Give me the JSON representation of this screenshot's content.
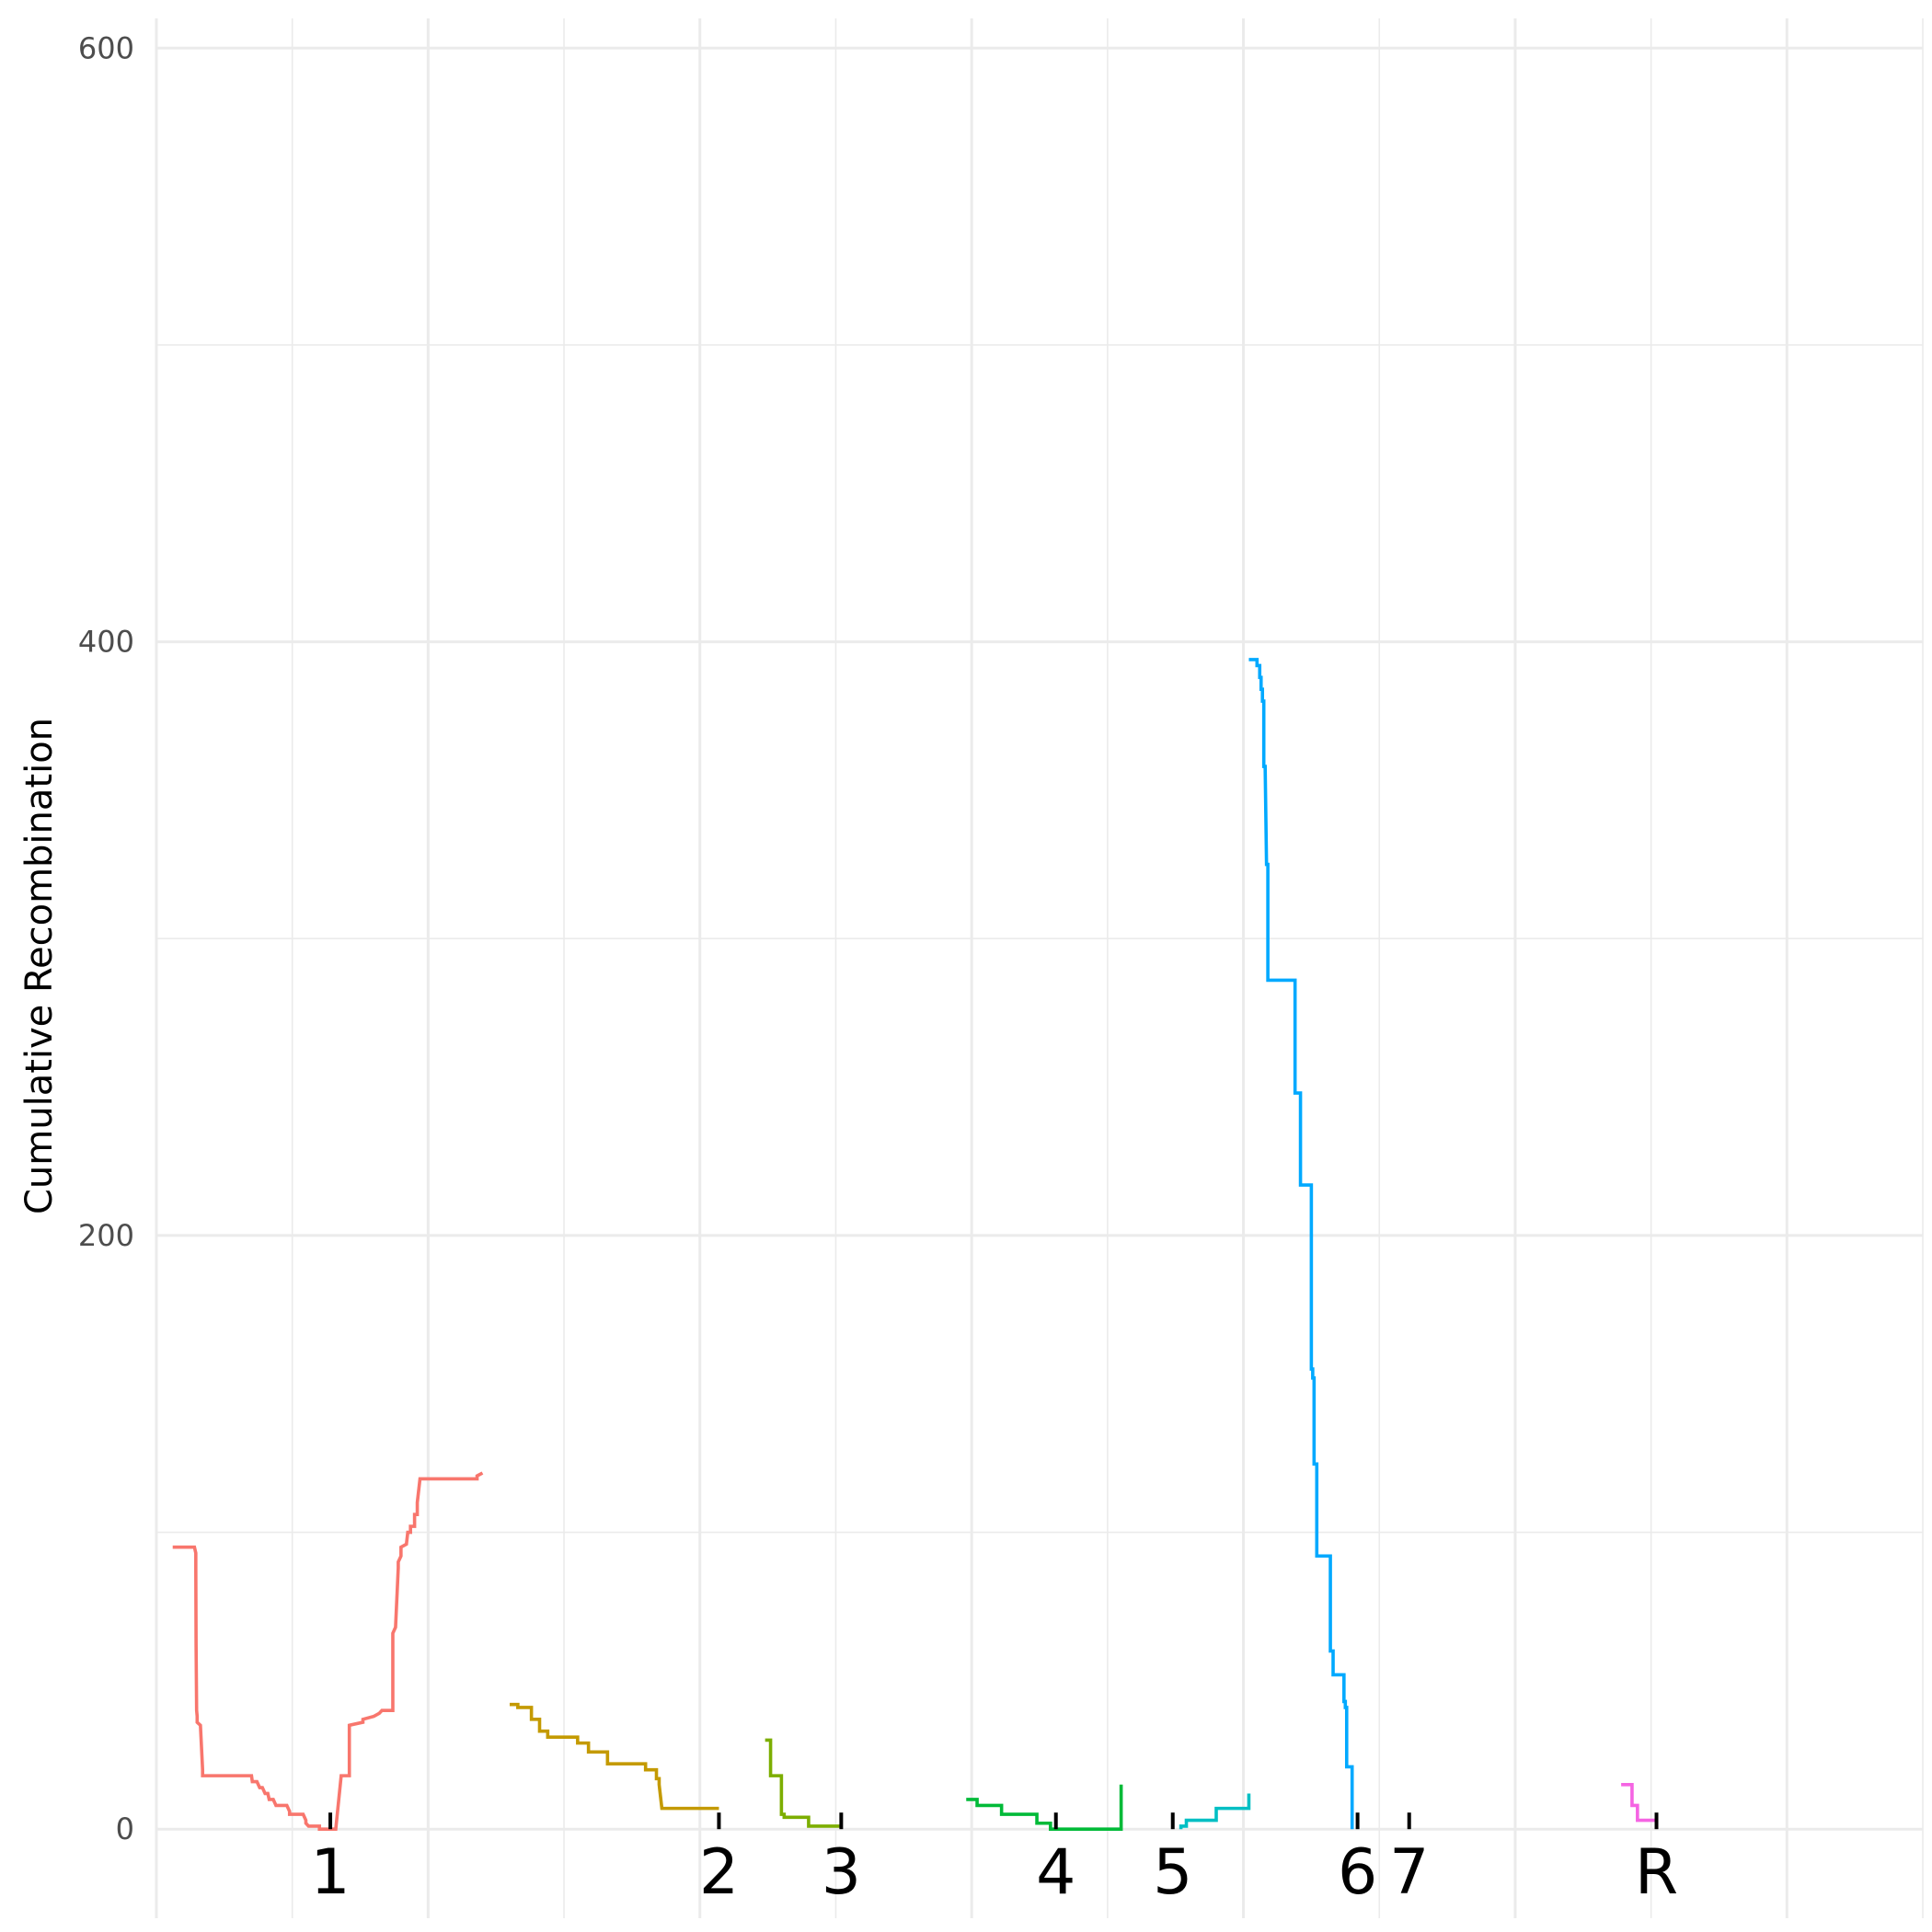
{
  "chart_data": {
    "type": "line",
    "title": "",
    "xlabel": "",
    "ylabel": "Cumulative Recombination",
    "xlim": [
      0,
      6.5
    ],
    "ylim": [
      -30,
      610
    ],
    "grid": true,
    "legend": "none",
    "y_ticks": [
      {
        "value": 0,
        "label": "0"
      },
      {
        "value": 200,
        "label": "200"
      },
      {
        "value": 400,
        "label": "400"
      },
      {
        "value": 600,
        "label": "600"
      }
    ],
    "x_ticks": [
      {
        "value": 0.64,
        "label": "1"
      },
      {
        "value": 2.07,
        "label": "2"
      },
      {
        "value": 2.52,
        "label": "3"
      },
      {
        "value": 3.31,
        "label": "4"
      },
      {
        "value": 3.74,
        "label": "5"
      },
      {
        "value": 4.42,
        "label": "6"
      },
      {
        "value": 4.61,
        "label": "7"
      },
      {
        "value": 5.52,
        "label": "R"
      }
    ],
    "series": [
      {
        "color": "#F8766D",
        "x": [
          0.06,
          0.14,
          0.145,
          0.145,
          0.146,
          0.148,
          0.15,
          0.15,
          0.162,
          0.17,
          0.17,
          0.174,
          0.17,
          0.35,
          0.353,
          0.37,
          0.38,
          0.39,
          0.4,
          0.41,
          0.415,
          0.43,
          0.44,
          0.48,
          0.49,
          0.49,
          0.5,
          0.54,
          0.55,
          0.55,
          0.56,
          0.6,
          0.6,
          0.66,
          0.66,
          0.68,
          0.71,
          0.71,
          0.76,
          0.76,
          0.8,
          0.82,
          0.83,
          0.86,
          0.87,
          0.87,
          0.88,
          0.89,
          0.89,
          0.9,
          0.9,
          0.92,
          0.925,
          0.935,
          0.935,
          0.95,
          0.95,
          0.96,
          0.96,
          0.97,
          1.18,
          1.18,
          1.2
        ],
        "y": [
          95,
          95,
          93,
          88,
          62,
          40,
          38,
          36,
          35,
          20,
          18,
          18,
          18,
          18,
          16,
          16,
          14,
          14,
          12,
          12,
          10,
          10,
          8,
          8,
          6,
          5,
          5,
          5,
          3,
          2,
          1,
          1,
          0,
          0,
          0,
          18,
          18,
          35,
          36,
          37,
          38,
          39,
          40,
          40,
          40,
          66,
          68,
          88,
          90,
          92,
          95,
          96,
          100,
          100,
          102,
          102,
          106,
          106,
          110,
          118,
          118,
          119,
          120
        ]
      },
      {
        "color": "#C49A00",
        "x": [
          1.3,
          1.33,
          1.33,
          1.38,
          1.38,
          1.41,
          1.41,
          1.44,
          1.44,
          1.55,
          1.55,
          1.59,
          1.59,
          1.66,
          1.66,
          1.8,
          1.8,
          1.84,
          1.84,
          1.85,
          1.85,
          1.86,
          2.07
        ],
        "y": [
          42,
          42,
          41,
          41,
          37,
          37,
          33,
          33,
          31,
          31,
          29,
          29,
          26,
          26,
          22,
          22,
          20,
          20,
          17,
          17,
          15,
          7,
          7
        ]
      },
      {
        "color": "#7CAE00",
        "x": [
          2.24,
          2.26,
          2.26,
          2.3,
          2.3,
          2.31,
          2.31,
          2.4,
          2.4,
          2.52
        ],
        "y": [
          30,
          30,
          18,
          18,
          5,
          5,
          4,
          4,
          1,
          1
        ]
      },
      {
        "color": "#00BA38",
        "x": [
          2.98,
          3.02,
          3.02,
          3.11,
          3.11,
          3.24,
          3.24,
          3.29,
          3.29,
          3.55,
          3.55
        ],
        "y": [
          10,
          10,
          8,
          8,
          5,
          5,
          2,
          2,
          0,
          0,
          15
        ]
      },
      {
        "color": "#00BFC4",
        "x": [
          3.77,
          3.77,
          3.79,
          3.79,
          3.9,
          3.9,
          4.02,
          4.02
        ],
        "y": [
          0,
          1,
          1,
          3,
          3,
          7,
          7,
          12
        ]
      },
      {
        "color": "#00A9FF",
        "x": [
          4.02,
          4.05,
          4.05,
          4.06,
          4.06,
          4.065,
          4.065,
          4.07,
          4.07,
          4.075,
          4.075,
          4.08,
          4.085,
          4.09,
          4.09,
          4.19,
          4.19,
          4.21,
          4.21,
          4.25,
          4.25,
          4.255,
          4.255,
          4.26,
          4.26,
          4.27,
          4.27,
          4.32,
          4.32,
          4.33,
          4.33,
          4.37,
          4.37,
          4.375,
          4.375,
          4.38,
          4.38,
          4.4,
          4.4
        ],
        "y": [
          394,
          394,
          392,
          392,
          388,
          388,
          384,
          384,
          380,
          380,
          358,
          358,
          325,
          325,
          286,
          286,
          248,
          248,
          217,
          217,
          155,
          155,
          152,
          152,
          123,
          123,
          92,
          92,
          60,
          60,
          52,
          52,
          43,
          43,
          41,
          41,
          21,
          21,
          0
        ]
      },
      {
        "color": "#F564E3",
        "x": [
          5.39,
          5.43,
          5.43,
          5.45,
          5.45,
          5.52,
          5.52
        ],
        "y": [
          15,
          15,
          8,
          8,
          3,
          3,
          3
        ]
      }
    ]
  }
}
